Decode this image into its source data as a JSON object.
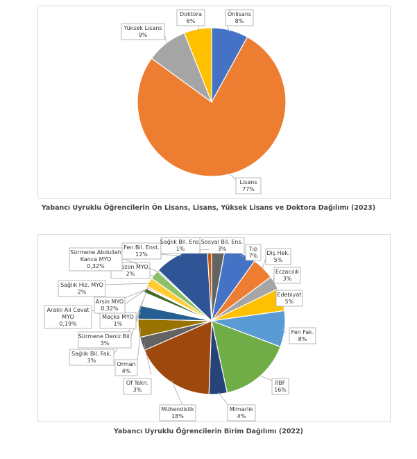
{
  "chart_data": [
    {
      "type": "pie",
      "title": "Yabancı Uyruklu Öğrencilerin Ön Lisans, Lisans, Yüksek Lisans ve Doktora Dağılımı (2023)",
      "slices": [
        {
          "label": "Önlisans",
          "value": 8,
          "value_text": "8%",
          "color": "#4472C4"
        },
        {
          "label": "Lisans",
          "value": 77,
          "value_text": "77%",
          "color": "#ED7D31"
        },
        {
          "label": "Yüksek Lisans",
          "value": 9,
          "value_text": "9%",
          "color": "#A5A5A5"
        },
        {
          "label": "Doktora",
          "value": 6,
          "value_text": "6%",
          "color": "#FFC000"
        }
      ]
    },
    {
      "type": "pie",
      "title": "Yabancı Uyruklu Öğrencilerin Birim Dağılımı (2022)",
      "slices": [
        {
          "label": "Sosyal Bil. Ens.",
          "value": 3,
          "value_text": "3%",
          "color": "#636363"
        },
        {
          "label": "Tıp",
          "value": 7,
          "value_text": "7%",
          "color": "#4472C4"
        },
        {
          "label": "Diş Hek.",
          "value": 5,
          "value_text": "5%",
          "color": "#ED7D31"
        },
        {
          "label": "Eczacılık",
          "value": 3,
          "value_text": "3%",
          "color": "#A5A5A5"
        },
        {
          "label": "Edebiyat",
          "value": 5,
          "value_text": "5%",
          "color": "#FFC000"
        },
        {
          "label": "Fen Fak.",
          "value": 8,
          "value_text": "8%",
          "color": "#5B9BD5"
        },
        {
          "label": "İİBF",
          "value": 16,
          "value_text": "16%",
          "color": "#70AD47"
        },
        {
          "label": "Mimarlık",
          "value": 4,
          "value_text": "4%",
          "color": "#264478"
        },
        {
          "label": "Mühendislik",
          "value": 18,
          "value_text": "18%",
          "color": "#9E480E"
        },
        {
          "label": "Of Tekn.",
          "value": 3,
          "value_text": "3%",
          "color": "#636363"
        },
        {
          "label": "Orman",
          "value": 4,
          "value_text": "4%",
          "color": "#997300"
        },
        {
          "label": "Sağlık Bil. Fak.",
          "value": 3,
          "value_text": "3%",
          "color": "#255E91"
        },
        {
          "label": "Sürmene Deniz Bil.",
          "value": 3,
          "value_text": "3%",
          "color": "#FFFFFF"
        },
        {
          "label": "Maçka MYO",
          "value": 1,
          "value_text": "1%",
          "color": "#43682B"
        },
        {
          "label": "Araklı Ali Cevat MYO",
          "value": 0.19,
          "value_text": "0,19%",
          "color": "#698ED0"
        },
        {
          "label": "Arsin MYO",
          "value": 0.32,
          "value_text": "0,32%",
          "color": "#F1975A"
        },
        {
          "label": "Sağlık Hiz. MYO",
          "value": 2,
          "value_text": "2%",
          "color": "#FFCD33"
        },
        {
          "label": "Trabzon MYO",
          "value": 2,
          "value_text": "2%",
          "color": "#8CC168"
        },
        {
          "label": "Sürmene Abdullah Kanca MYO",
          "value": 0.32,
          "value_text": "0,32%",
          "color": "#B7B7B7"
        },
        {
          "label": "Fen Bil. Enst.",
          "value": 12,
          "value_text": "12%",
          "color": "#2F5597"
        },
        {
          "label": "Sağlık Bil. Ens.",
          "value": 1,
          "value_text": "1%",
          "color": "#C55A11"
        }
      ]
    }
  ]
}
